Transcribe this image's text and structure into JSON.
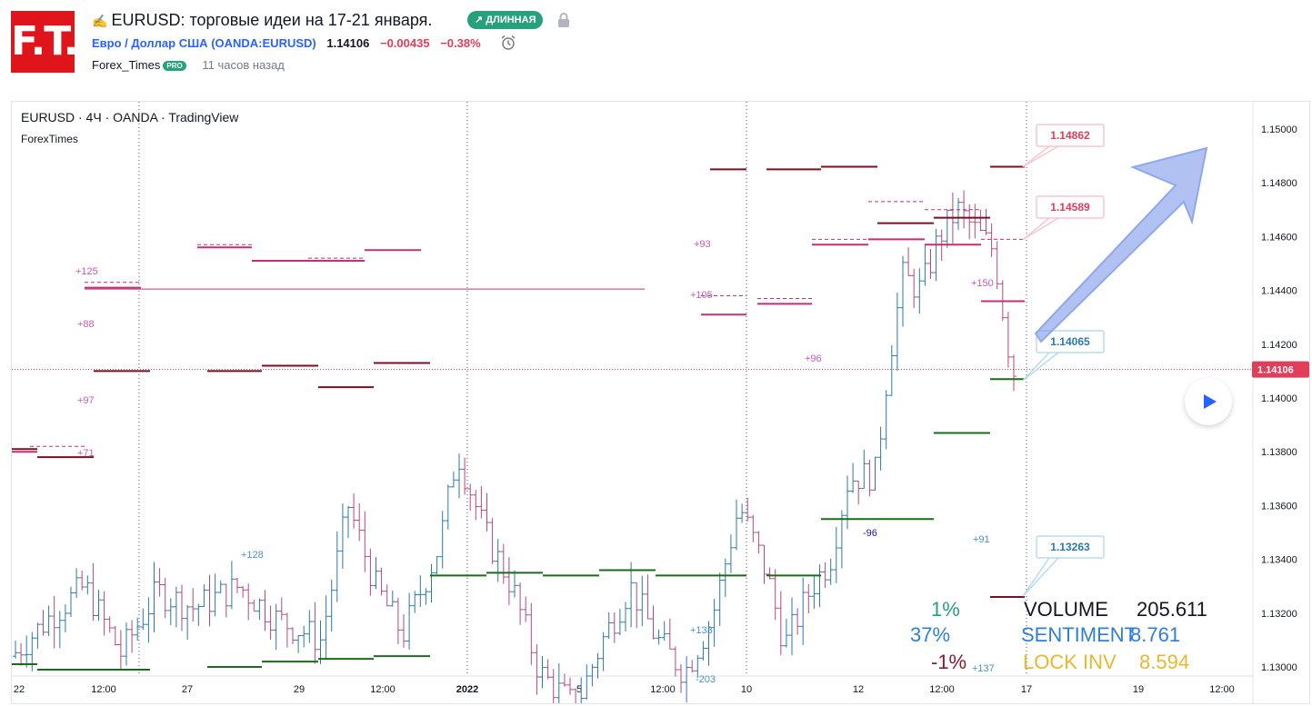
{
  "header": {
    "pencil_glyph": "✍",
    "title": "EURUSD: торговые идеи на 17-21 января.",
    "badge": "↗ ДЛИННАЯ",
    "logo": "F.T.",
    "symbol_name": "Евро / Доллар США",
    "symbol_code": "(OANDA:EURUSD)",
    "price": "1.14106",
    "change": "−0.00435",
    "change_pct": "−0.38%",
    "author": "Forex_Times",
    "pro": "PRO",
    "time_ago": "11 часов назад"
  },
  "chart": {
    "legend_main": "EURUSD · 4Ч · OANDA · TradingView",
    "legend_indicator": "ForexTimes",
    "last_price": "1.14106",
    "price_ticks": [
      "1.15000",
      "1.14800",
      "1.14600",
      "1.14400",
      "1.14200",
      "1.14000",
      "1.13800",
      "1.13600",
      "1.13400",
      "1.13200",
      "1.13000"
    ],
    "time_ticks": [
      "22",
      "12:00",
      "27",
      "29",
      "12:00",
      "2022",
      "5",
      "12:00",
      "10",
      "12",
      "12:00",
      "17",
      "19",
      "12:00"
    ],
    "callouts": [
      "1.14862",
      "1.14589",
      "1.14065",
      "1.13263"
    ],
    "annotations": [
      "+125",
      "+88",
      "+97",
      "+71",
      "+128",
      "+93",
      "+105",
      "+96",
      "-96",
      "+150",
      "+91",
      "+133",
      "+137",
      "-203"
    ],
    "colors": {
      "accent": "#2962ff",
      "up": "#26a17b",
      "down": "#e03e5a",
      "bar_up": "#2a7aa8",
      "bar_down": "#b04a80"
    }
  },
  "stats": {
    "p1": "1%",
    "p2": "37%",
    "p3": "-1%",
    "volume_label": "VOLUME",
    "volume_value": "205.611",
    "sentiment_label": "SENTIMENT",
    "sentiment_value": "8.761",
    "lock_label": "LOCK INV",
    "lock_value": "8.594"
  }
}
